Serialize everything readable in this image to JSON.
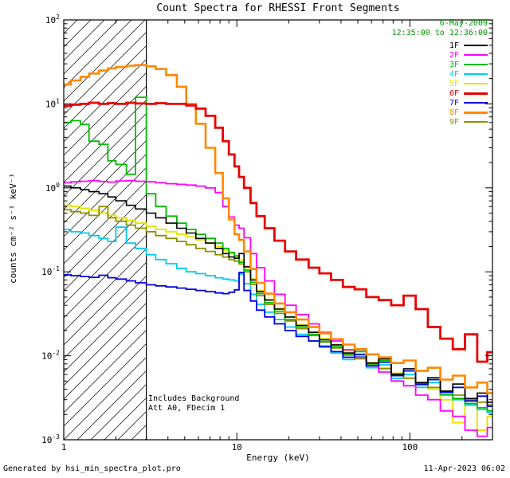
{
  "header": {
    "title": "Count Spectra for RHESSI Front Segments",
    "date": "6-May-2009",
    "time_range": "12:35:00 to 12:36:00",
    "header_color": "#009900"
  },
  "annotations": {
    "line1": "Includes Background",
    "line2": "Att A0, FDecim 1"
  },
  "axes": {
    "xlabel": "Energy (keV)",
    "ylabel": "counts cm⁻² s⁻¹ keV⁻¹"
  },
  "footer": {
    "left": "Generated by hsi_min_spectra_plot.pro",
    "right": "11-Apr-2023 06:02"
  },
  "chart_data": {
    "type": "line",
    "mode": "histogram-steps",
    "x_scale": "log",
    "y_scale": "log",
    "xlim": [
      1,
      300
    ],
    "ylim": [
      0.001,
      100
    ],
    "grid": false,
    "legend_position": "top-right-inside",
    "x_ticks": [
      {
        "value": 1,
        "label": "1"
      },
      {
        "value": 10,
        "label": "10"
      },
      {
        "value": 100,
        "label": "100"
      }
    ],
    "y_ticks": [
      {
        "value": 100,
        "exp": "2"
      },
      {
        "value": 10,
        "exp": "1"
      },
      {
        "value": 1,
        "exp": "0"
      },
      {
        "value": 0.1,
        "exp": "-1"
      },
      {
        "value": 0.01,
        "exp": "-2"
      },
      {
        "value": 0.001,
        "exp": "-3"
      }
    ],
    "hatch_region": {
      "x_from": 1,
      "x_to": 3
    },
    "x": [
      1.0,
      1.1,
      1.25,
      1.4,
      1.6,
      1.8,
      2.0,
      2.3,
      2.6,
      3.0,
      3.4,
      3.9,
      4.5,
      5.1,
      5.8,
      6.6,
      7.5,
      8.3,
      9.0,
      9.7,
      10.3,
      11.0,
      12.0,
      13.0,
      14.5,
      16.5,
      19,
      22,
      26,
      30,
      35,
      41,
      48,
      56,
      66,
      78,
      92,
      108,
      127,
      150,
      177,
      208,
      245,
      280
    ],
    "series": [
      {
        "name": "1F",
        "color": "#000000",
        "width": 1.6,
        "zorder": 7,
        "values": [
          1.05,
          1.0,
          0.95,
          0.9,
          0.85,
          0.78,
          0.7,
          0.62,
          0.56,
          0.5,
          0.44,
          0.38,
          0.33,
          0.29,
          0.25,
          0.22,
          0.19,
          0.165,
          0.15,
          0.145,
          0.165,
          0.115,
          0.08,
          0.058,
          0.046,
          0.036,
          0.029,
          0.023,
          0.019,
          0.0155,
          0.0135,
          0.0108,
          0.0118,
          0.0082,
          0.0092,
          0.006,
          0.007,
          0.0048,
          0.0055,
          0.0038,
          0.0046,
          0.0031,
          0.0036,
          0.0028
        ]
      },
      {
        "name": "2F",
        "color": "#ff00ff",
        "width": 1.8,
        "zorder": 5,
        "values": [
          1.15,
          1.18,
          1.2,
          1.22,
          1.19,
          1.17,
          1.21,
          1.22,
          1.2,
          1.18,
          1.15,
          1.12,
          1.1,
          1.08,
          1.05,
          1.0,
          0.88,
          0.6,
          0.45,
          0.36,
          0.33,
          0.255,
          0.165,
          0.112,
          0.078,
          0.054,
          0.04,
          0.031,
          0.024,
          0.019,
          0.015,
          0.0118,
          0.0096,
          0.0076,
          0.0064,
          0.005,
          0.0044,
          0.0034,
          0.003,
          0.0022,
          0.0019,
          0.0013,
          0.0011,
          0.0014
        ]
      },
      {
        "name": "3F",
        "color": "#00bb00",
        "width": 1.8,
        "zorder": 4,
        "values": [
          6.0,
          6.3,
          5.7,
          3.6,
          3.3,
          2.1,
          1.9,
          1.45,
          12.0,
          0.85,
          0.6,
          0.46,
          0.38,
          0.32,
          0.28,
          0.25,
          0.22,
          0.19,
          0.17,
          0.155,
          0.13,
          0.105,
          0.075,
          0.055,
          0.043,
          0.034,
          0.027,
          0.022,
          0.018,
          0.0148,
          0.0128,
          0.0102,
          0.0112,
          0.008,
          0.0088,
          0.0058,
          0.0066,
          0.0045,
          0.0052,
          0.0035,
          0.0031,
          0.0027,
          0.0024,
          0.0022
        ]
      },
      {
        "name": "4F",
        "color": "#00ccee",
        "width": 1.8,
        "zorder": 2,
        "values": [
          0.32,
          0.3,
          0.29,
          0.27,
          0.25,
          0.23,
          0.34,
          0.22,
          0.19,
          0.16,
          0.14,
          0.125,
          0.11,
          0.1,
          0.095,
          0.09,
          0.085,
          0.082,
          0.08,
          0.078,
          0.094,
          0.072,
          0.054,
          0.041,
          0.033,
          0.027,
          0.022,
          0.018,
          0.015,
          0.0126,
          0.0108,
          0.009,
          0.0098,
          0.0072,
          0.0078,
          0.0054,
          0.006,
          0.0042,
          0.0048,
          0.0034,
          0.003,
          0.0026,
          0.0023,
          0.0021
        ]
      },
      {
        "name": "5F",
        "color": "#e6e600",
        "width": 2.0,
        "zorder": 1,
        "values": [
          0.62,
          0.6,
          0.57,
          0.54,
          0.5,
          0.47,
          0.44,
          0.41,
          0.38,
          0.35,
          0.32,
          0.3,
          0.28,
          0.26,
          0.24,
          0.22,
          0.2,
          0.18,
          0.165,
          0.15,
          0.138,
          0.112,
          0.082,
          0.06,
          0.047,
          0.037,
          0.029,
          0.0235,
          0.0192,
          0.016,
          0.0135,
          0.0114,
          0.0097,
          0.0083,
          0.0072,
          0.0062,
          0.0054,
          0.0047,
          0.004,
          0.003,
          0.0016,
          0.0026,
          0.0013,
          0.0019
        ]
      },
      {
        "name": "6F",
        "color": "#e80000",
        "width": 2.8,
        "zorder": 9,
        "values": [
          9.5,
          9.8,
          10.0,
          10.3,
          10.0,
          10.2,
          10.0,
          10.3,
          10.1,
          10.0,
          10.2,
          10.0,
          10.0,
          9.6,
          8.8,
          7.2,
          5.2,
          3.6,
          2.5,
          1.8,
          1.35,
          1.0,
          0.66,
          0.46,
          0.33,
          0.235,
          0.175,
          0.14,
          0.112,
          0.096,
          0.08,
          0.066,
          0.062,
          0.05,
          0.046,
          0.04,
          0.052,
          0.036,
          0.022,
          0.016,
          0.012,
          0.018,
          0.0085,
          0.011
        ]
      },
      {
        "name": "7F",
        "color": "#0000dd",
        "width": 1.8,
        "zorder": 6,
        "values": [
          0.092,
          0.09,
          0.088,
          0.086,
          0.091,
          0.085,
          0.082,
          0.078,
          0.074,
          0.07,
          0.068,
          0.066,
          0.064,
          0.062,
          0.06,
          0.058,
          0.056,
          0.055,
          0.057,
          0.061,
          0.098,
          0.06,
          0.045,
          0.035,
          0.029,
          0.024,
          0.02,
          0.017,
          0.015,
          0.013,
          0.0112,
          0.0096,
          0.0104,
          0.0076,
          0.0084,
          0.0058,
          0.0066,
          0.0046,
          0.0052,
          0.0037,
          0.0042,
          0.0029,
          0.0033,
          0.0025
        ]
      },
      {
        "name": "8F",
        "color": "#ff8800",
        "width": 2.6,
        "zorder": 8,
        "values": [
          17.0,
          19.0,
          21.0,
          23.0,
          25.0,
          26.5,
          27.5,
          28.5,
          29.0,
          28.0,
          26.0,
          22.0,
          16.0,
          10.0,
          5.8,
          3.0,
          1.5,
          0.75,
          0.42,
          0.28,
          0.24,
          0.175,
          0.108,
          0.074,
          0.055,
          0.042,
          0.033,
          0.027,
          0.022,
          0.0185,
          0.0158,
          0.0136,
          0.012,
          0.0104,
          0.0096,
          0.0082,
          0.0088,
          0.0066,
          0.0072,
          0.0052,
          0.0058,
          0.0042,
          0.0048,
          0.0036
        ]
      },
      {
        "name": "9F",
        "color": "#8f8f00",
        "width": 1.8,
        "zorder": 3,
        "values": [
          0.55,
          0.52,
          0.5,
          0.47,
          0.6,
          0.44,
          0.4,
          0.36,
          0.33,
          0.3,
          0.27,
          0.25,
          0.23,
          0.21,
          0.19,
          0.175,
          0.16,
          0.15,
          0.14,
          0.134,
          0.124,
          0.1,
          0.071,
          0.052,
          0.041,
          0.032,
          0.026,
          0.021,
          0.0174,
          0.0146,
          0.0124,
          0.0106,
          0.0092,
          0.008,
          0.007,
          0.0061,
          0.0054,
          0.0048,
          0.0042,
          0.0038,
          0.0034,
          0.003,
          0.0028,
          0.0026
        ]
      }
    ]
  }
}
